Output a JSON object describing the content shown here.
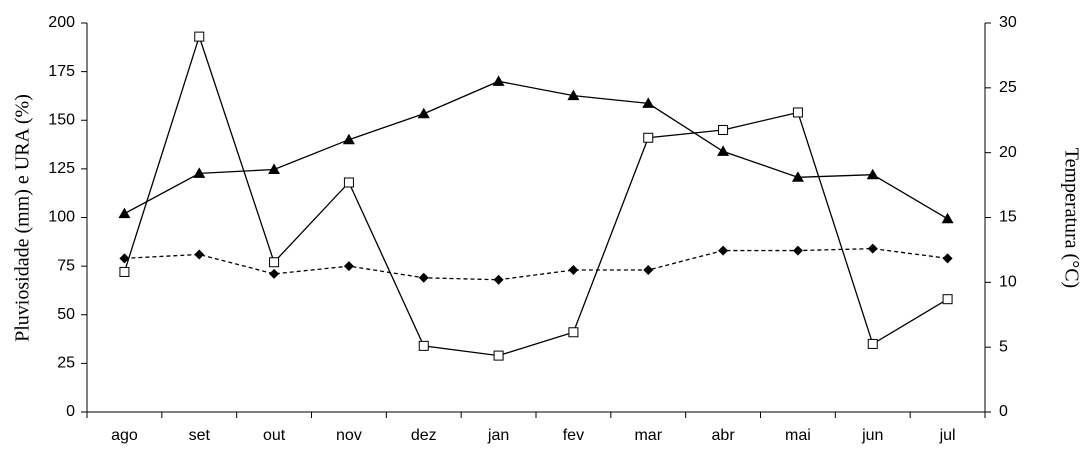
{
  "chart_data": {
    "type": "line",
    "categories": [
      "ago",
      "set",
      "out",
      "nov",
      "dez",
      "jan",
      "fev",
      "mar",
      "abr",
      "mai",
      "jun",
      "jul"
    ],
    "y_label": "Pluviosidade (mm) e URA (%)",
    "y2_label": "Temperatura (°C)",
    "ylim": [
      0,
      200
    ],
    "yticks": [
      0,
      25,
      50,
      75,
      100,
      125,
      150,
      175,
      200
    ],
    "y2lim": [
      0,
      30
    ],
    "y2ticks": [
      0,
      5,
      10,
      15,
      20,
      25,
      30
    ],
    "series": [
      {
        "color": "#000000",
        "marker": "square-open",
        "dash": false,
        "values": [
          72,
          193,
          77,
          118,
          34,
          29,
          41,
          141,
          145,
          154,
          35,
          58
        ]
      },
      {
        "color": "#000000",
        "marker": "triangle",
        "dash": false,
        "axis": "y2",
        "values": [
          15.3,
          18.4,
          18.7,
          21.0,
          23.0,
          25.5,
          24.4,
          23.8,
          20.1,
          18.1,
          18.3,
          14.9
        ]
      },
      {
        "color": "#000000",
        "marker": "diamond",
        "dash": true,
        "values": [
          79,
          81,
          71,
          75,
          69,
          68,
          73,
          73,
          83,
          83,
          84,
          79
        ]
      }
    ]
  }
}
